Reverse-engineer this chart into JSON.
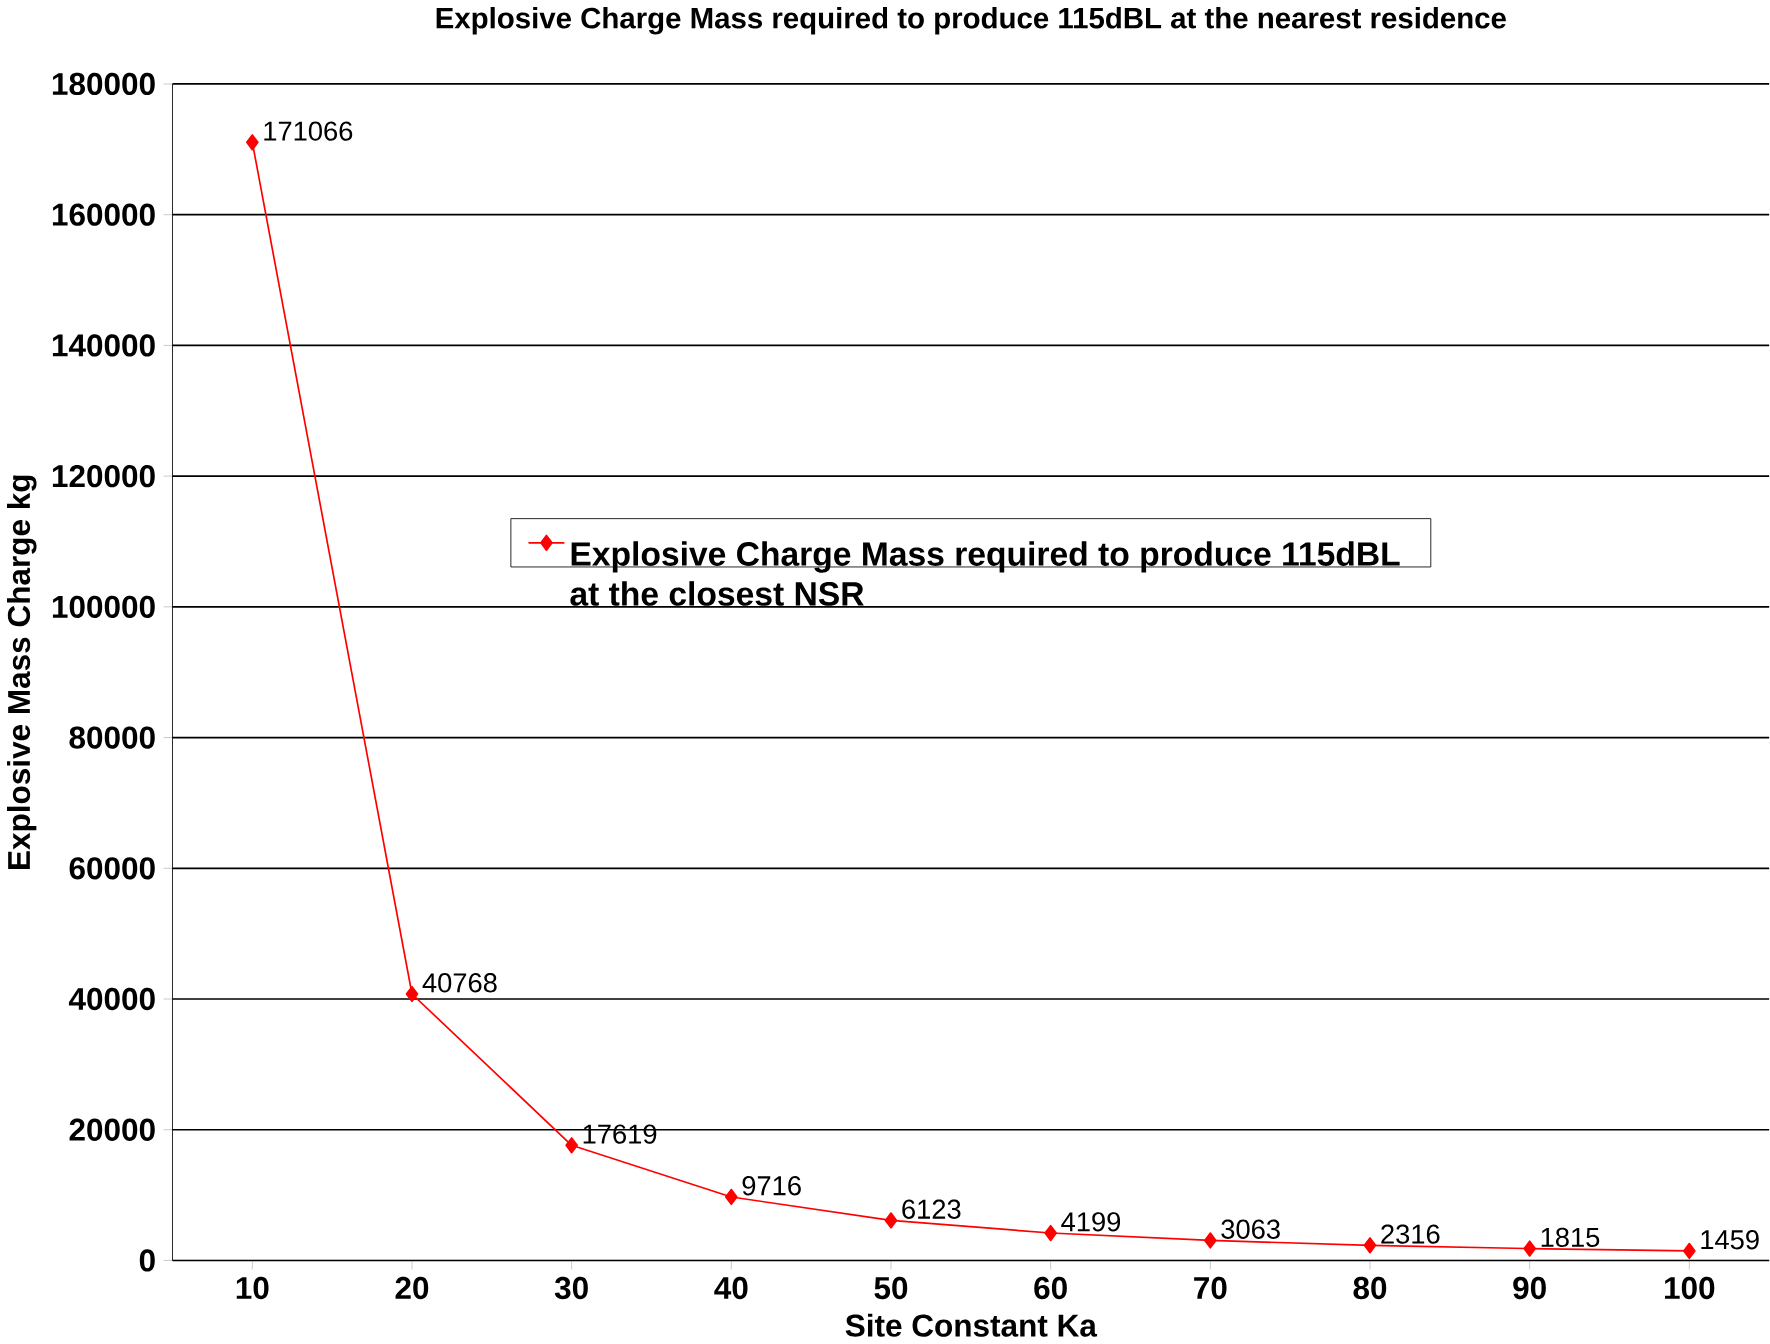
{
  "chart_data": {
    "type": "line",
    "title": "Explosive Charge Mass required to produce 115dBL at the nearest residence",
    "xlabel": "Site Constant Ka",
    "ylabel": "Explosive Mass Charge kg",
    "categories": [
      "10",
      "20",
      "30",
      "40",
      "50",
      "60",
      "70",
      "80",
      "90",
      "100"
    ],
    "series": [
      {
        "name": "Explosive Charge Mass required to produce 115dBL at the closest NSR",
        "color": "#ff0000",
        "values": [
          171066,
          40768,
          17619,
          9716,
          6123,
          4199,
          3063,
          2316,
          1815,
          1459
        ]
      }
    ],
    "ylim": [
      0,
      180000
    ],
    "yticks": [
      0,
      20000,
      40000,
      60000,
      80000,
      100000,
      120000,
      140000,
      160000,
      180000
    ],
    "grid": "y",
    "legend": "center",
    "marker": "diamond",
    "line_style": "solid",
    "data_labels": true
  }
}
